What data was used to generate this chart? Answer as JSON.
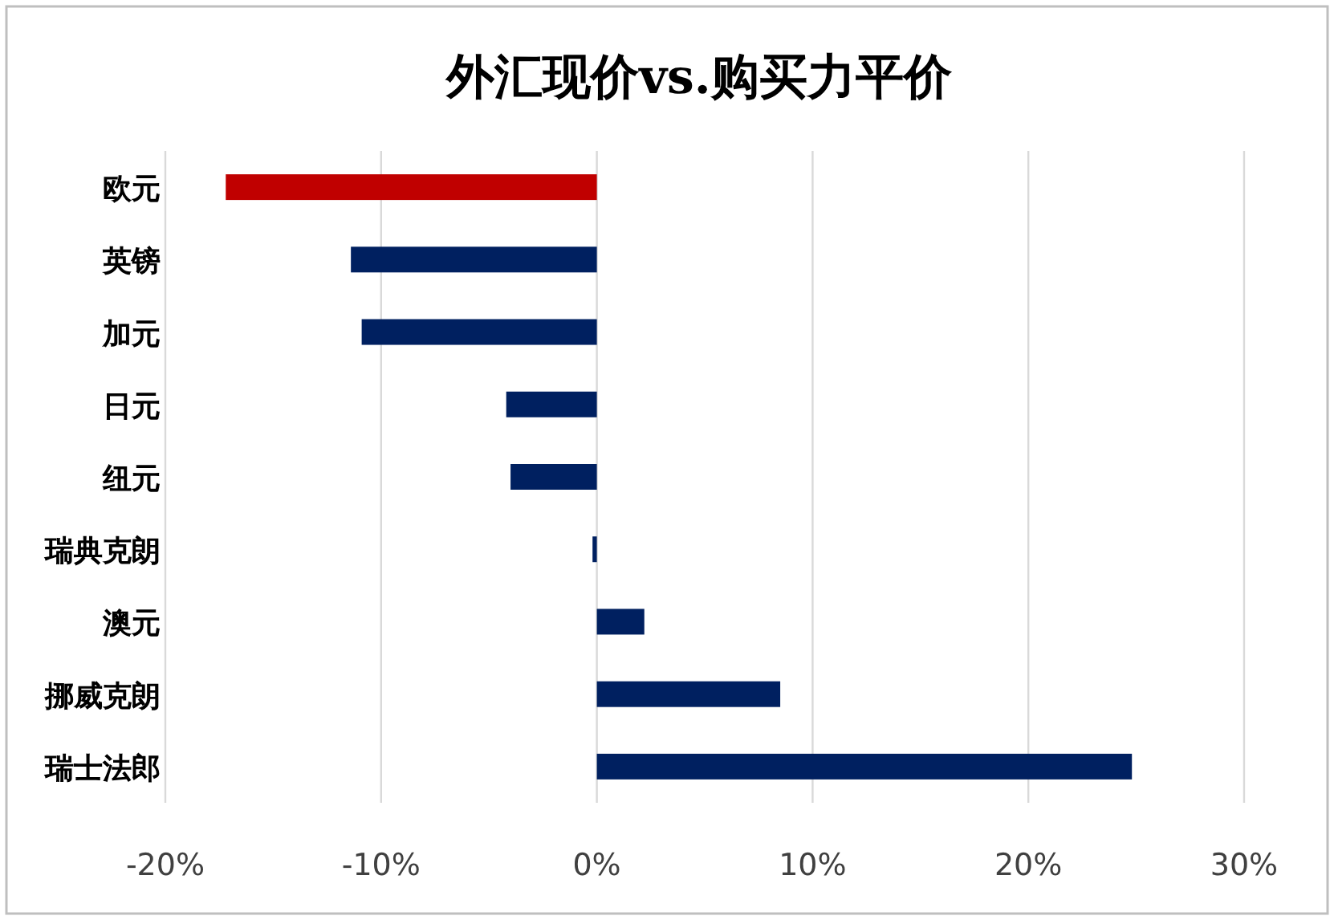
{
  "chart_data": {
    "type": "bar",
    "orientation": "horizontal",
    "title": "外汇现价vs.购买力平价",
    "categories": [
      "欧元",
      "英镑",
      "加元",
      "日元",
      "纽元",
      "瑞典克朗",
      "澳元",
      "挪威克朗",
      "瑞士法郎"
    ],
    "values": [
      -17.2,
      -11.4,
      -10.9,
      -4.2,
      -4.0,
      -0.2,
      2.2,
      8.5,
      24.8
    ],
    "colors": [
      "#c00000",
      "#002060",
      "#002060",
      "#002060",
      "#002060",
      "#002060",
      "#002060",
      "#002060",
      "#002060"
    ],
    "xlim": [
      -20,
      30
    ],
    "xticks": [
      {
        "value": -20,
        "label": "-20%"
      },
      {
        "value": -10,
        "label": "-10%"
      },
      {
        "value": 0,
        "label": "0%"
      },
      {
        "value": 10,
        "label": "10%"
      },
      {
        "value": 20,
        "label": "20%"
      },
      {
        "value": 30,
        "label": "30%"
      }
    ],
    "grid": "x"
  }
}
